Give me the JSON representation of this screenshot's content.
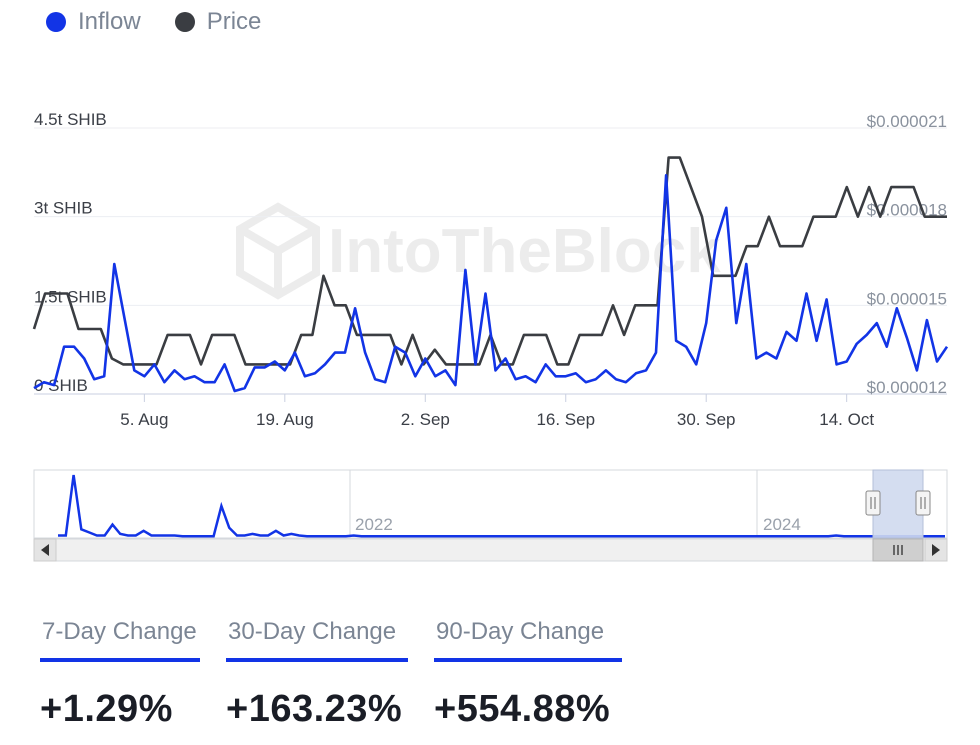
{
  "legend": {
    "items": [
      {
        "label": "Inflow",
        "color": "#1234e6"
      },
      {
        "label": "Price",
        "color": "#3a3d42"
      }
    ]
  },
  "watermark": {
    "text": "IntoTheBlock"
  },
  "chart_data": {
    "type": "line",
    "left_axis": {
      "ticks": [
        {
          "value": 0,
          "label": "0 SHIB"
        },
        {
          "value": 1.5,
          "label": "1.5t SHIB"
        },
        {
          "value": 3,
          "label": "3t SHIB"
        },
        {
          "value": 4.5,
          "label": "4.5t SHIB"
        }
      ],
      "range": [
        0,
        4.5
      ]
    },
    "right_axis": {
      "ticks": [
        {
          "value": 1.2e-05,
          "label": "$0.000012"
        },
        {
          "value": 1.5e-05,
          "label": "$0.000015"
        },
        {
          "value": 1.8e-05,
          "label": "$0.000018"
        },
        {
          "value": 2.1e-05,
          "label": "$0.000021"
        }
      ],
      "range": [
        1.2e-05,
        2.1e-05
      ]
    },
    "x_axis": {
      "ticks": [
        "5. Aug",
        "19. Aug",
        "2. Sep",
        "16. Sep",
        "30. Sep",
        "14. Oct"
      ],
      "grid": false
    },
    "grid": true,
    "legend_position": "top-left",
    "series": [
      {
        "name": "Inflow",
        "axis": "left",
        "unit": "t SHIB",
        "color": "#1234e6",
        "values": [
          0.1,
          0.2,
          0.15,
          0.8,
          0.8,
          0.6,
          0.25,
          0.3,
          2.2,
          1.3,
          0.4,
          0.3,
          0.5,
          0.2,
          0.4,
          0.25,
          0.3,
          0.2,
          0.2,
          0.5,
          0.05,
          0.1,
          0.45,
          0.45,
          0.55,
          0.4,
          0.7,
          0.3,
          0.35,
          0.5,
          0.7,
          0.7,
          1.45,
          0.7,
          0.25,
          0.2,
          0.8,
          0.7,
          0.3,
          0.6,
          0.3,
          0.4,
          0.15,
          2.1,
          0.5,
          1.7,
          0.4,
          0.6,
          0.25,
          0.3,
          0.2,
          0.5,
          0.3,
          0.3,
          0.35,
          0.2,
          0.25,
          0.4,
          0.25,
          0.2,
          0.35,
          0.4,
          0.7,
          3.7,
          0.9,
          0.8,
          0.5,
          1.2,
          2.6,
          3.15,
          1.2,
          2.2,
          0.6,
          0.7,
          0.6,
          1.05,
          0.9,
          1.7,
          0.9,
          1.6,
          0.5,
          0.55,
          0.85,
          1.0,
          1.2,
          0.8,
          1.45,
          0.95,
          0.4,
          1.25,
          0.55,
          0.8
        ]
      },
      {
        "name": "Price",
        "axis": "right",
        "unit": "$",
        "color": "#3a3d42",
        "values": [
          1.42e-05,
          1.54e-05,
          1.54e-05,
          1.54e-05,
          1.42e-05,
          1.42e-05,
          1.42e-05,
          1.32e-05,
          1.3e-05,
          1.3e-05,
          1.3e-05,
          1.3e-05,
          1.4e-05,
          1.4e-05,
          1.4e-05,
          1.3e-05,
          1.4e-05,
          1.4e-05,
          1.4e-05,
          1.3e-05,
          1.3e-05,
          1.3e-05,
          1.3e-05,
          1.3e-05,
          1.4e-05,
          1.4e-05,
          1.6e-05,
          1.5e-05,
          1.5e-05,
          1.4e-05,
          1.4e-05,
          1.4e-05,
          1.4e-05,
          1.3e-05,
          1.4e-05,
          1.3e-05,
          1.35e-05,
          1.3e-05,
          1.3e-05,
          1.3e-05,
          1.3e-05,
          1.4e-05,
          1.3e-05,
          1.3e-05,
          1.4e-05,
          1.4e-05,
          1.4e-05,
          1.3e-05,
          1.3e-05,
          1.4e-05,
          1.4e-05,
          1.4e-05,
          1.5e-05,
          1.4e-05,
          1.5e-05,
          1.5e-05,
          1.5e-05,
          2e-05,
          2e-05,
          1.9e-05,
          1.8e-05,
          1.6e-05,
          1.6e-05,
          1.6e-05,
          1.7e-05,
          1.7e-05,
          1.8e-05,
          1.7e-05,
          1.7e-05,
          1.7e-05,
          1.8e-05,
          1.8e-05,
          1.8e-05,
          1.9e-05,
          1.8e-05,
          1.9e-05,
          1.8e-05,
          1.9e-05,
          1.9e-05,
          1.9e-05,
          1.8e-05,
          1.8e-05,
          1.8e-05
        ]
      }
    ]
  },
  "navigator": {
    "year_labels": [
      "2022",
      "2024"
    ],
    "overview_values": [
      0.1,
      0.1,
      4.0,
      0.5,
      0.3,
      0.1,
      0.1,
      0.8,
      0.2,
      0.1,
      0.1,
      0.4,
      0.1,
      0.1,
      0.1,
      0.1,
      0.05,
      0.05,
      0.05,
      0.05,
      0.05,
      2.0,
      0.6,
      0.1,
      0.1,
      0.2,
      0.1,
      0.1,
      0.4,
      0.1,
      0.2,
      0.1,
      0.05,
      0.05,
      0.05,
      0.05,
      0.05,
      0.05,
      0.1,
      0.05,
      0.05,
      0.05,
      0.05,
      0.05,
      0.05,
      0.05,
      0.05,
      0.05,
      0.05,
      0.05,
      0.05,
      0.05,
      0.05,
      0.05,
      0.05,
      0.05,
      0.05,
      0.05,
      0.05,
      0.05,
      0.05,
      0.05,
      0.05,
      0.05,
      0.05,
      0.05,
      0.05,
      0.05,
      0.05,
      0.05,
      0.05,
      0.05,
      0.05,
      0.05,
      0.05,
      0.05,
      0.05,
      0.05,
      0.05,
      0.05,
      0.05,
      0.05,
      0.05,
      0.05,
      0.05,
      0.05,
      0.05,
      0.05,
      0.05,
      0.05,
      0.05,
      0.05,
      0.05,
      0.05,
      0.05,
      0.05,
      0.05,
      0.05,
      0.05,
      0.05,
      0.1,
      0.05,
      0.05,
      0.05,
      0.05,
      0.05,
      0.05,
      0.05,
      0.05,
      0.05,
      0.05,
      0.05,
      0.05,
      0.05,
      0.05
    ]
  },
  "tabs": [
    {
      "label": "7-Day Change",
      "value": "+1.29%"
    },
    {
      "label": "30-Day Change",
      "value": "+163.23%"
    },
    {
      "label": "90-Day Change",
      "value": "+554.88%"
    }
  ]
}
